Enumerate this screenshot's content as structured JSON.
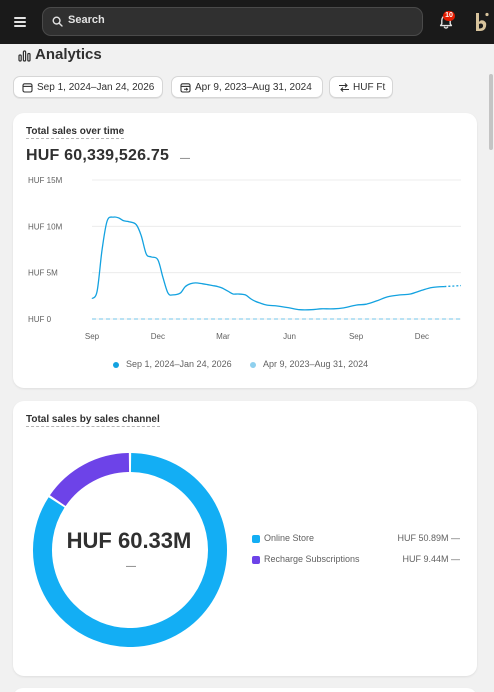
{
  "topbar": {
    "search_placeholder": "Search",
    "notification_count": "10",
    "colors": {
      "background": "#1a1a1a",
      "badge": "#e51c00"
    }
  },
  "page": {
    "title": "Analytics"
  },
  "filters": {
    "primary_range": "Sep 1, 2024–Jan 24, 2026",
    "comparison_range": "Apr 9, 2023–Aug 31, 2024",
    "currency": "HUF Ft"
  },
  "sales_over_time": {
    "title": "Total sales over time",
    "total": "HUF 60,339,526.75",
    "total_change": "—",
    "legend": {
      "primary": "Sep 1, 2024–Jan 24, 2026",
      "comparison": "Apr 9, 2023–Aug 31, 2024"
    }
  },
  "sales_by_channel": {
    "title": "Total sales by sales channel",
    "center_value": "HUF 60.33M",
    "center_change": "—",
    "items": [
      {
        "label": "Online Store",
        "value": "HUF 50.89M",
        "change": "—"
      },
      {
        "label": "Recharge Subscriptions",
        "value": "HUF 9.44M",
        "change": "—"
      }
    ]
  },
  "colors": {
    "primary_series": "#13a2e0",
    "comparison_series": "#8fd0ee",
    "online_store": "#13aef4",
    "recharge": "#6d43e8"
  },
  "chart_data": [
    {
      "type": "line",
      "title": "Total sales over time",
      "x_tick_labels": [
        "Sep",
        "Dec",
        "Mar",
        "Jun",
        "Sep",
        "Dec"
      ],
      "y_tick_labels": [
        "HUF 15M",
        "HUF 10M",
        "HUF 5M",
        "HUF 0"
      ],
      "ylim": [
        0,
        15000000
      ],
      "grid": true,
      "legend_position": "bottom",
      "series": [
        {
          "name": "Sep 1, 2024–Jan 24, 2026",
          "x": [
            "2024-09-01",
            "2024-09-08",
            "2024-09-15",
            "2024-09-22",
            "2024-10-01",
            "2024-10-08",
            "2024-10-15",
            "2024-10-22",
            "2024-11-01",
            "2024-11-08",
            "2024-11-15",
            "2024-11-22",
            "2024-12-01",
            "2024-12-08",
            "2024-12-15",
            "2024-12-22",
            "2025-01-01",
            "2025-01-08",
            "2025-01-15",
            "2025-01-22",
            "2025-02-01",
            "2025-02-08",
            "2025-02-15",
            "2025-02-22",
            "2025-03-01",
            "2025-03-08",
            "2025-03-15",
            "2025-03-22",
            "2025-04-01",
            "2025-04-08",
            "2025-04-15",
            "2025-04-22",
            "2025-05-01",
            "2025-05-15",
            "2025-06-01",
            "2025-06-15",
            "2025-07-01",
            "2025-07-15",
            "2025-08-01",
            "2025-08-15",
            "2025-09-01",
            "2025-09-15",
            "2025-10-01",
            "2025-10-15",
            "2025-11-01",
            "2025-11-15",
            "2025-12-01",
            "2025-12-15",
            "2026-01-01"
          ],
          "values": [
            2200000,
            3000000,
            7500000,
            10600000,
            11000000,
            10900000,
            10600000,
            10500000,
            10200000,
            9000000,
            7000000,
            6700000,
            6400000,
            4500000,
            2800000,
            2600000,
            2800000,
            3500000,
            3800000,
            3900000,
            3800000,
            3700000,
            3600000,
            3500000,
            3300000,
            3000000,
            2700000,
            2700000,
            2600000,
            2200000,
            1900000,
            1700000,
            1500000,
            1400000,
            1200000,
            1000000,
            1000000,
            1100000,
            1100000,
            1200000,
            1500000,
            1600000,
            2000000,
            2400000,
            2600000,
            2700000,
            3100000,
            3400000,
            3500000
          ]
        },
        {
          "name": "Apr 9, 2023–Aug 31, 2024",
          "values": [
            0
          ]
        }
      ]
    },
    {
      "type": "pie",
      "title": "Total sales by sales channel",
      "categories": [
        "Online Store",
        "Recharge Subscriptions"
      ],
      "values": [
        50.89,
        9.44
      ],
      "unit": "HUF M"
    }
  ]
}
